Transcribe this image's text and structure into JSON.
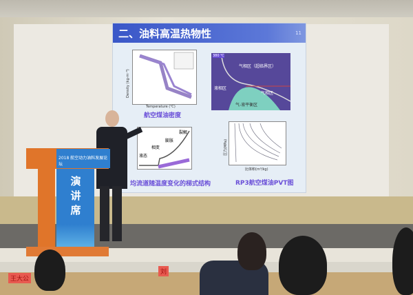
{
  "slide": {
    "title": "二、油料高温热物性",
    "page_number": "11",
    "plots": [
      {
        "caption": "航空煤油密度",
        "xlabel": "Temperature (℃)",
        "ylabel": "Density (kg·m⁻³)"
      },
      {
        "labels": [
          "380 ℃",
          "气相区（超临界区）",
          "液相区",
          "气相区",
          "气-液平衡区"
        ]
      },
      {
        "caption": "均流道随温度变化的梯式结构",
        "labels": [
          "液态",
          "相变",
          "膨胀",
          "裂解"
        ]
      },
      {
        "caption": "RP3航空煤油PVT图",
        "xlabel": "比体积(m³/kg)",
        "ylabel": "压力(MPa)"
      }
    ]
  },
  "podium": {
    "banner": "2018 航空动力油料发展论坛",
    "sign": "演讲席"
  },
  "nameplates": [
    "王大公",
    "刘"
  ],
  "colors": {
    "slide_title_bar": "#3a57c8",
    "caption": "#6a4fd8",
    "podium_orange": "#e0752a",
    "podium_blue": "#2f7fcf"
  }
}
